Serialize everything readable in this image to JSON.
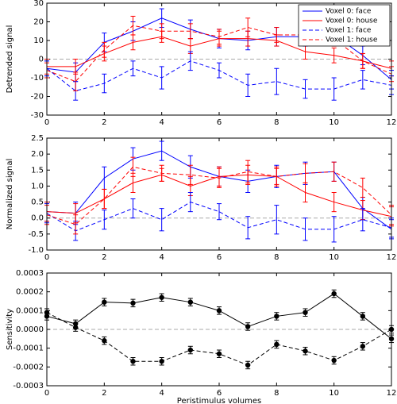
{
  "chart_data": [
    {
      "type": "line",
      "ylabel": "Detrended signal",
      "legend": "upper right",
      "x": [
        0,
        1,
        2,
        3,
        4,
        5,
        6,
        7,
        8,
        9,
        10,
        11,
        12
      ],
      "xlim": [
        0,
        12
      ],
      "xticks": [
        0,
        2,
        4,
        6,
        8,
        10,
        12
      ],
      "ylim": [
        -30,
        30
      ],
      "yticks": [
        -30,
        -20,
        -10,
        0,
        10,
        20,
        30
      ],
      "series": [
        {
          "name": "Voxel 0: face",
          "color": "#0000ff",
          "dash": false,
          "values": [
            -5,
            -7,
            9,
            15,
            22,
            16,
            11,
            10,
            12,
            12,
            13,
            2,
            -11
          ],
          "errors": [
            4,
            5,
            5,
            5,
            5,
            5,
            5,
            5,
            5,
            5,
            5,
            5,
            5
          ]
        },
        {
          "name": "Voxel 0: house",
          "color": "#ff0000",
          "dash": false,
          "values": [
            -4,
            -4,
            3,
            9,
            12,
            7,
            11,
            11,
            10,
            4,
            2,
            -1,
            -5
          ],
          "errors": [
            4,
            4,
            4,
            4,
            3,
            4,
            4,
            4,
            3,
            4,
            4,
            4,
            4
          ]
        },
        {
          "name": "Voxel 1: face",
          "color": "#0000ff",
          "dash": true,
          "values": [
            -5,
            -17,
            -13,
            -5,
            -10,
            -1,
            -6,
            -14,
            -12,
            -16,
            -16,
            -11,
            -14
          ],
          "errors": [
            4,
            5,
            5,
            4,
            6,
            5,
            4,
            6,
            7,
            5,
            6,
            5,
            5
          ]
        },
        {
          "name": "Voxel 1: house",
          "color": "#ff0000",
          "dash": true,
          "values": [
            -6,
            -12,
            5,
            18,
            15,
            15,
            12,
            17,
            13,
            13,
            11,
            -1,
            -8
          ],
          "errors": [
            4,
            5,
            4,
            5,
            4,
            4,
            4,
            5,
            4,
            4,
            4,
            4,
            4
          ]
        }
      ]
    },
    {
      "type": "line",
      "ylabel": "Normalized signal",
      "x": [
        0,
        1,
        2,
        3,
        4,
        5,
        6,
        7,
        8,
        9,
        10,
        11,
        12
      ],
      "xlim": [
        0,
        12
      ],
      "xticks": [
        0,
        2,
        4,
        6,
        8,
        10,
        12
      ],
      "ylim": [
        -1,
        2.5
      ],
      "yticks": [
        {
          "value": -1,
          "label": "-1.0"
        },
        -0.5,
        {
          "value": 0,
          "label": "0.0"
        },
        0.5,
        {
          "value": 1,
          "label": "1.0"
        },
        1.5,
        {
          "value": 2,
          "label": "2.0"
        },
        2.5
      ],
      "series": [
        {
          "color": "#0000ff",
          "dash": false,
          "values": [
            0.2,
            0.15,
            1.25,
            1.85,
            2.1,
            1.6,
            1.3,
            1.15,
            1.3,
            1.4,
            1.45,
            0.3,
            -0.35
          ],
          "errors": [
            0.3,
            0.35,
            0.35,
            0.35,
            0.3,
            0.35,
            0.3,
            0.35,
            0.35,
            0.35,
            0.3,
            0.35,
            0.3
          ]
        },
        {
          "color": "#ff0000",
          "dash": false,
          "values": [
            0.2,
            0.15,
            0.6,
            1.1,
            1.35,
            1.0,
            1.3,
            1.35,
            1.3,
            0.8,
            0.5,
            0.25,
            0.05
          ],
          "errors": [
            0.3,
            0.3,
            0.3,
            0.3,
            0.2,
            0.3,
            0.3,
            0.3,
            0.25,
            0.3,
            0.3,
            0.3,
            0.3
          ]
        },
        {
          "color": "#0000ff",
          "dash": true,
          "values": [
            0.15,
            -0.4,
            -0.05,
            0.3,
            -0.05,
            0.5,
            0.2,
            -0.3,
            -0.05,
            -0.35,
            -0.35,
            -0.05,
            -0.3
          ],
          "errors": [
            0.3,
            0.3,
            0.3,
            0.3,
            0.35,
            0.3,
            0.25,
            0.35,
            0.45,
            0.35,
            0.4,
            0.35,
            0.3
          ]
        },
        {
          "color": "#ff0000",
          "dash": true,
          "values": [
            0.1,
            -0.2,
            0.6,
            1.6,
            1.4,
            1.35,
            1.25,
            1.45,
            1.3,
            1.4,
            1.45,
            0.95,
            0.1
          ],
          "errors": [
            0.3,
            0.3,
            0.3,
            0.3,
            0.25,
            0.3,
            0.3,
            0.35,
            0.3,
            0.3,
            0.3,
            0.3,
            0.3
          ]
        }
      ]
    },
    {
      "type": "line",
      "ylabel": "Sensitivity",
      "xlabel": "Peristimulus volumes",
      "x": [
        0,
        1,
        2,
        3,
        4,
        5,
        6,
        7,
        8,
        9,
        10,
        11,
        12
      ],
      "xlim": [
        0,
        12
      ],
      "xticks": [
        0,
        2,
        4,
        6,
        8,
        10,
        12
      ],
      "ylim": [
        -0.0003,
        0.0003
      ],
      "yticks": [
        -0.0003,
        -0.0002,
        -0.0001,
        {
          "value": 0,
          "label": "0.0000"
        },
        0.0001,
        0.0002,
        0.0003
      ],
      "series": [
        {
          "color": "#000000",
          "dash": false,
          "marker": "circle",
          "values": [
            7e-05,
            3e-05,
            0.000145,
            0.00014,
            0.00017,
            0.000145,
            0.0001,
            1.5e-05,
            7e-05,
            9e-05,
            0.00019,
            7e-05,
            -5e-05
          ],
          "errors": [
            2e-05,
            2e-05,
            2e-05,
            2e-05,
            2e-05,
            2e-05,
            2e-05,
            2e-05,
            2e-05,
            2e-05,
            2e-05,
            2e-05,
            2e-05
          ]
        },
        {
          "color": "#000000",
          "dash": true,
          "marker": "circle",
          "values": [
            9e-05,
            1e-05,
            -6e-05,
            -0.00017,
            -0.00017,
            -0.00011,
            -0.00013,
            -0.00019,
            -8e-05,
            -0.000115,
            -0.000165,
            -9e-05,
            0
          ],
          "errors": [
            2e-05,
            2e-05,
            2e-05,
            2e-05,
            2e-05,
            2e-05,
            2e-05,
            2e-05,
            2e-05,
            2e-05,
            2e-05,
            2e-05,
            2e-05
          ]
        }
      ]
    }
  ]
}
